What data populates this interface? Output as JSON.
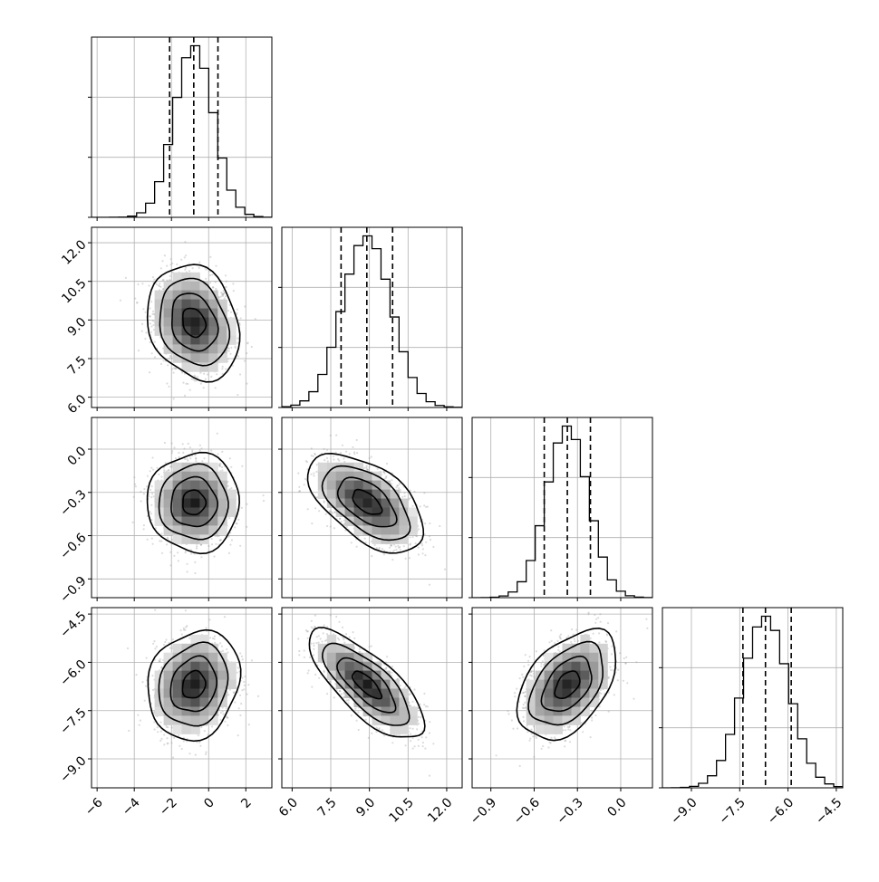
{
  "chart_data": {
    "type": "corner",
    "grid": true,
    "parameters": [
      {
        "mean": -0.8,
        "sd": 1.05,
        "range": [
          -6.3,
          3.4
        ],
        "ticks": [
          -6,
          -4,
          -2,
          0,
          2
        ],
        "tick_labels": [
          "−6",
          "−4",
          "−2",
          "0",
          "2"
        ],
        "quantiles": [
          -2.1,
          -0.8,
          0.5
        ]
      },
      {
        "mean": 8.9,
        "sd": 0.95,
        "range": [
          5.6,
          12.6
        ],
        "ticks": [
          6.0,
          7.5,
          9.0,
          10.5,
          12.0
        ],
        "tick_labels": [
          "6.0",
          "7.5",
          "9.0",
          "10.5",
          "12.0"
        ],
        "quantiles": [
          7.9,
          8.9,
          9.9
        ]
      },
      {
        "mean": -0.37,
        "sd": 0.145,
        "range": [
          -1.03,
          0.22
        ],
        "ticks": [
          -0.9,
          -0.6,
          -0.3,
          0.0
        ],
        "tick_labels": [
          "−0.9",
          "−0.6",
          "−0.3",
          "0.0"
        ],
        "quantiles": [
          -0.53,
          -0.37,
          -0.21
        ]
      },
      {
        "mean": -6.7,
        "sd": 0.72,
        "range": [
          -9.9,
          -4.3
        ],
        "ticks": [
          -9.0,
          -7.5,
          -6.0,
          -4.5
        ],
        "tick_labels": [
          "−9.0",
          "−7.5",
          "−6.0",
          "−4.5"
        ],
        "quantiles": [
          -7.4,
          -6.7,
          -5.9
        ]
      }
    ],
    "correlations": [
      {
        "i": 1,
        "j": 0,
        "r": -0.2
      },
      {
        "i": 2,
        "j": 0,
        "r": 0.0
      },
      {
        "i": 2,
        "j": 1,
        "r": -0.55
      },
      {
        "i": 3,
        "j": 0,
        "r": 0.15
      },
      {
        "i": 3,
        "j": 1,
        "r": -0.75
      },
      {
        "i": 3,
        "j": 2,
        "r": 0.45
      }
    ],
    "contour_levels_sigma": [
      0.5,
      1.0,
      1.5,
      2.0
    ],
    "colors": {
      "line": "#000000",
      "points": "#9a9a9a",
      "grid": "#b0b0b0"
    }
  }
}
